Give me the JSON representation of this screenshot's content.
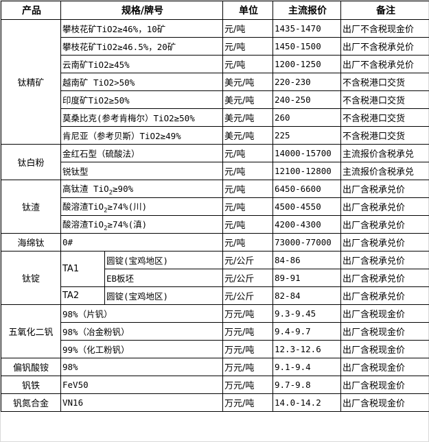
{
  "headers": {
    "product": "产品",
    "spec": "规格/牌号",
    "unit": "单位",
    "price": "主流报价",
    "note": "备注"
  },
  "groups": {
    "titanium_concentrate": {
      "name": "钛精矿",
      "rows": [
        {
          "spec": "攀枝花矿TiO2≥46%，10矿",
          "unit": "元/吨",
          "price": "1435-1470",
          "note": "出厂不含税现金价"
        },
        {
          "spec": "攀枝花矿TiO2≥46.5%，20矿",
          "unit": "元/吨",
          "price": "1450-1500",
          "note": "出厂不含税承兑价"
        },
        {
          "spec": "云南矿TiO2≥45%",
          "unit": "元/吨",
          "price": "1200-1250",
          "note": "出厂不含税承兑价"
        },
        {
          "spec": "越南矿 TiO2>50%",
          "unit": "美元/吨",
          "price": "220-230",
          "note": "不含税港口交货"
        },
        {
          "spec": "印度矿TiO2≥50%",
          "unit": "美元/吨",
          "price": "240-250",
          "note": "不含税港口交货"
        },
        {
          "spec": "莫桑比克(参考肯梅尔）TiO2≥50%",
          "unit": "美元/吨",
          "price": "260",
          "note": "不含税港口交货"
        },
        {
          "spec": "肯尼亚（参考贝斯）TiO2≥49%",
          "unit": "美元/吨",
          "price": "225",
          "note": "不含税港口交货"
        }
      ]
    },
    "titanium_dioxide": {
      "name": "钛白粉",
      "rows": [
        {
          "spec": "金红石型（硫酸法）",
          "unit": "元/吨",
          "price": "14000-15700",
          "note": "主流报价含税承兑"
        },
        {
          "spec": "锐钛型",
          "unit": "元/吨",
          "price": "12100-12800",
          "note": "主流报价含税承兑"
        }
      ]
    },
    "titanium_slag": {
      "name": "钛渣",
      "rows": [
        {
          "spec_pre": "高钛渣 TiO",
          "spec_sub": "2",
          "spec_post": "≥90%",
          "unit": "元/吨",
          "price": "6450-6600",
          "note": "出厂含税承兑价"
        },
        {
          "spec_pre": "酸溶渣TiO",
          "spec_sub": "2",
          "spec_post": "≥74%(川)",
          "unit": "元/吨",
          "price": "4500-4550",
          "note": "出厂含税承兑价"
        },
        {
          "spec_pre": "酸溶渣TiO",
          "spec_sub": "2",
          "spec_post": "≥74%(滇)",
          "unit": "元/吨",
          "price": "4200-4300",
          "note": "出厂含税承兑价"
        }
      ]
    },
    "sponge_titanium": {
      "name": "海绵钛",
      "rows": [
        {
          "spec": "0#",
          "unit": "元/吨",
          "price": "73000-77000",
          "note": "出厂含税承兑价"
        }
      ]
    },
    "titanium_ingot": {
      "name": "钛锭",
      "rows": [
        {
          "grade": "TA1",
          "spec": "圆锭(宝鸡地区)",
          "unit": "元/公斤",
          "price": "84-86",
          "note": "出厂含税承兑价"
        },
        {
          "spec": "EB板坯",
          "unit": "元/公斤",
          "price": "89-91",
          "note": "出厂含税承兑价"
        },
        {
          "grade": "TA2",
          "spec": "圆锭(宝鸡地区)",
          "unit": "元/公斤",
          "price": "82-84",
          "note": "出厂含税承兑价"
        }
      ]
    },
    "vanadium_pentoxide": {
      "name": "五氧化二钒",
      "rows": [
        {
          "spec": "98%（片钒）",
          "unit": "万元/吨",
          "price": "9.3-9.45",
          "note": "出厂含税现金价"
        },
        {
          "spec": "98%（冶金粉钒）",
          "unit": "万元/吨",
          "price": "9.4-9.7",
          "note": "出厂含税现金价"
        },
        {
          "spec": "99%（化工粉钒）",
          "unit": "万元/吨",
          "price": "12.3-12.6",
          "note": "出厂含税现金价"
        }
      ]
    },
    "ammonium_metavanadate": {
      "name": "偏钒酸铵",
      "rows": [
        {
          "spec": "98%",
          "unit": "万元/吨",
          "price": "9.1-9.4",
          "note": "出厂含税现金价"
        }
      ]
    },
    "ferrovanadium": {
      "name": "钒铁",
      "rows": [
        {
          "spec": "FeV50",
          "unit": "万元/吨",
          "price": "9.7-9.8",
          "note": "出厂含税现金价"
        }
      ]
    },
    "vanadium_nitrogen": {
      "name": "钒氮合金",
      "rows": [
        {
          "spec": "VN16",
          "unit": "万元/吨",
          "price": "14.0-14.2",
          "note": "出厂含税现金价"
        }
      ]
    }
  }
}
